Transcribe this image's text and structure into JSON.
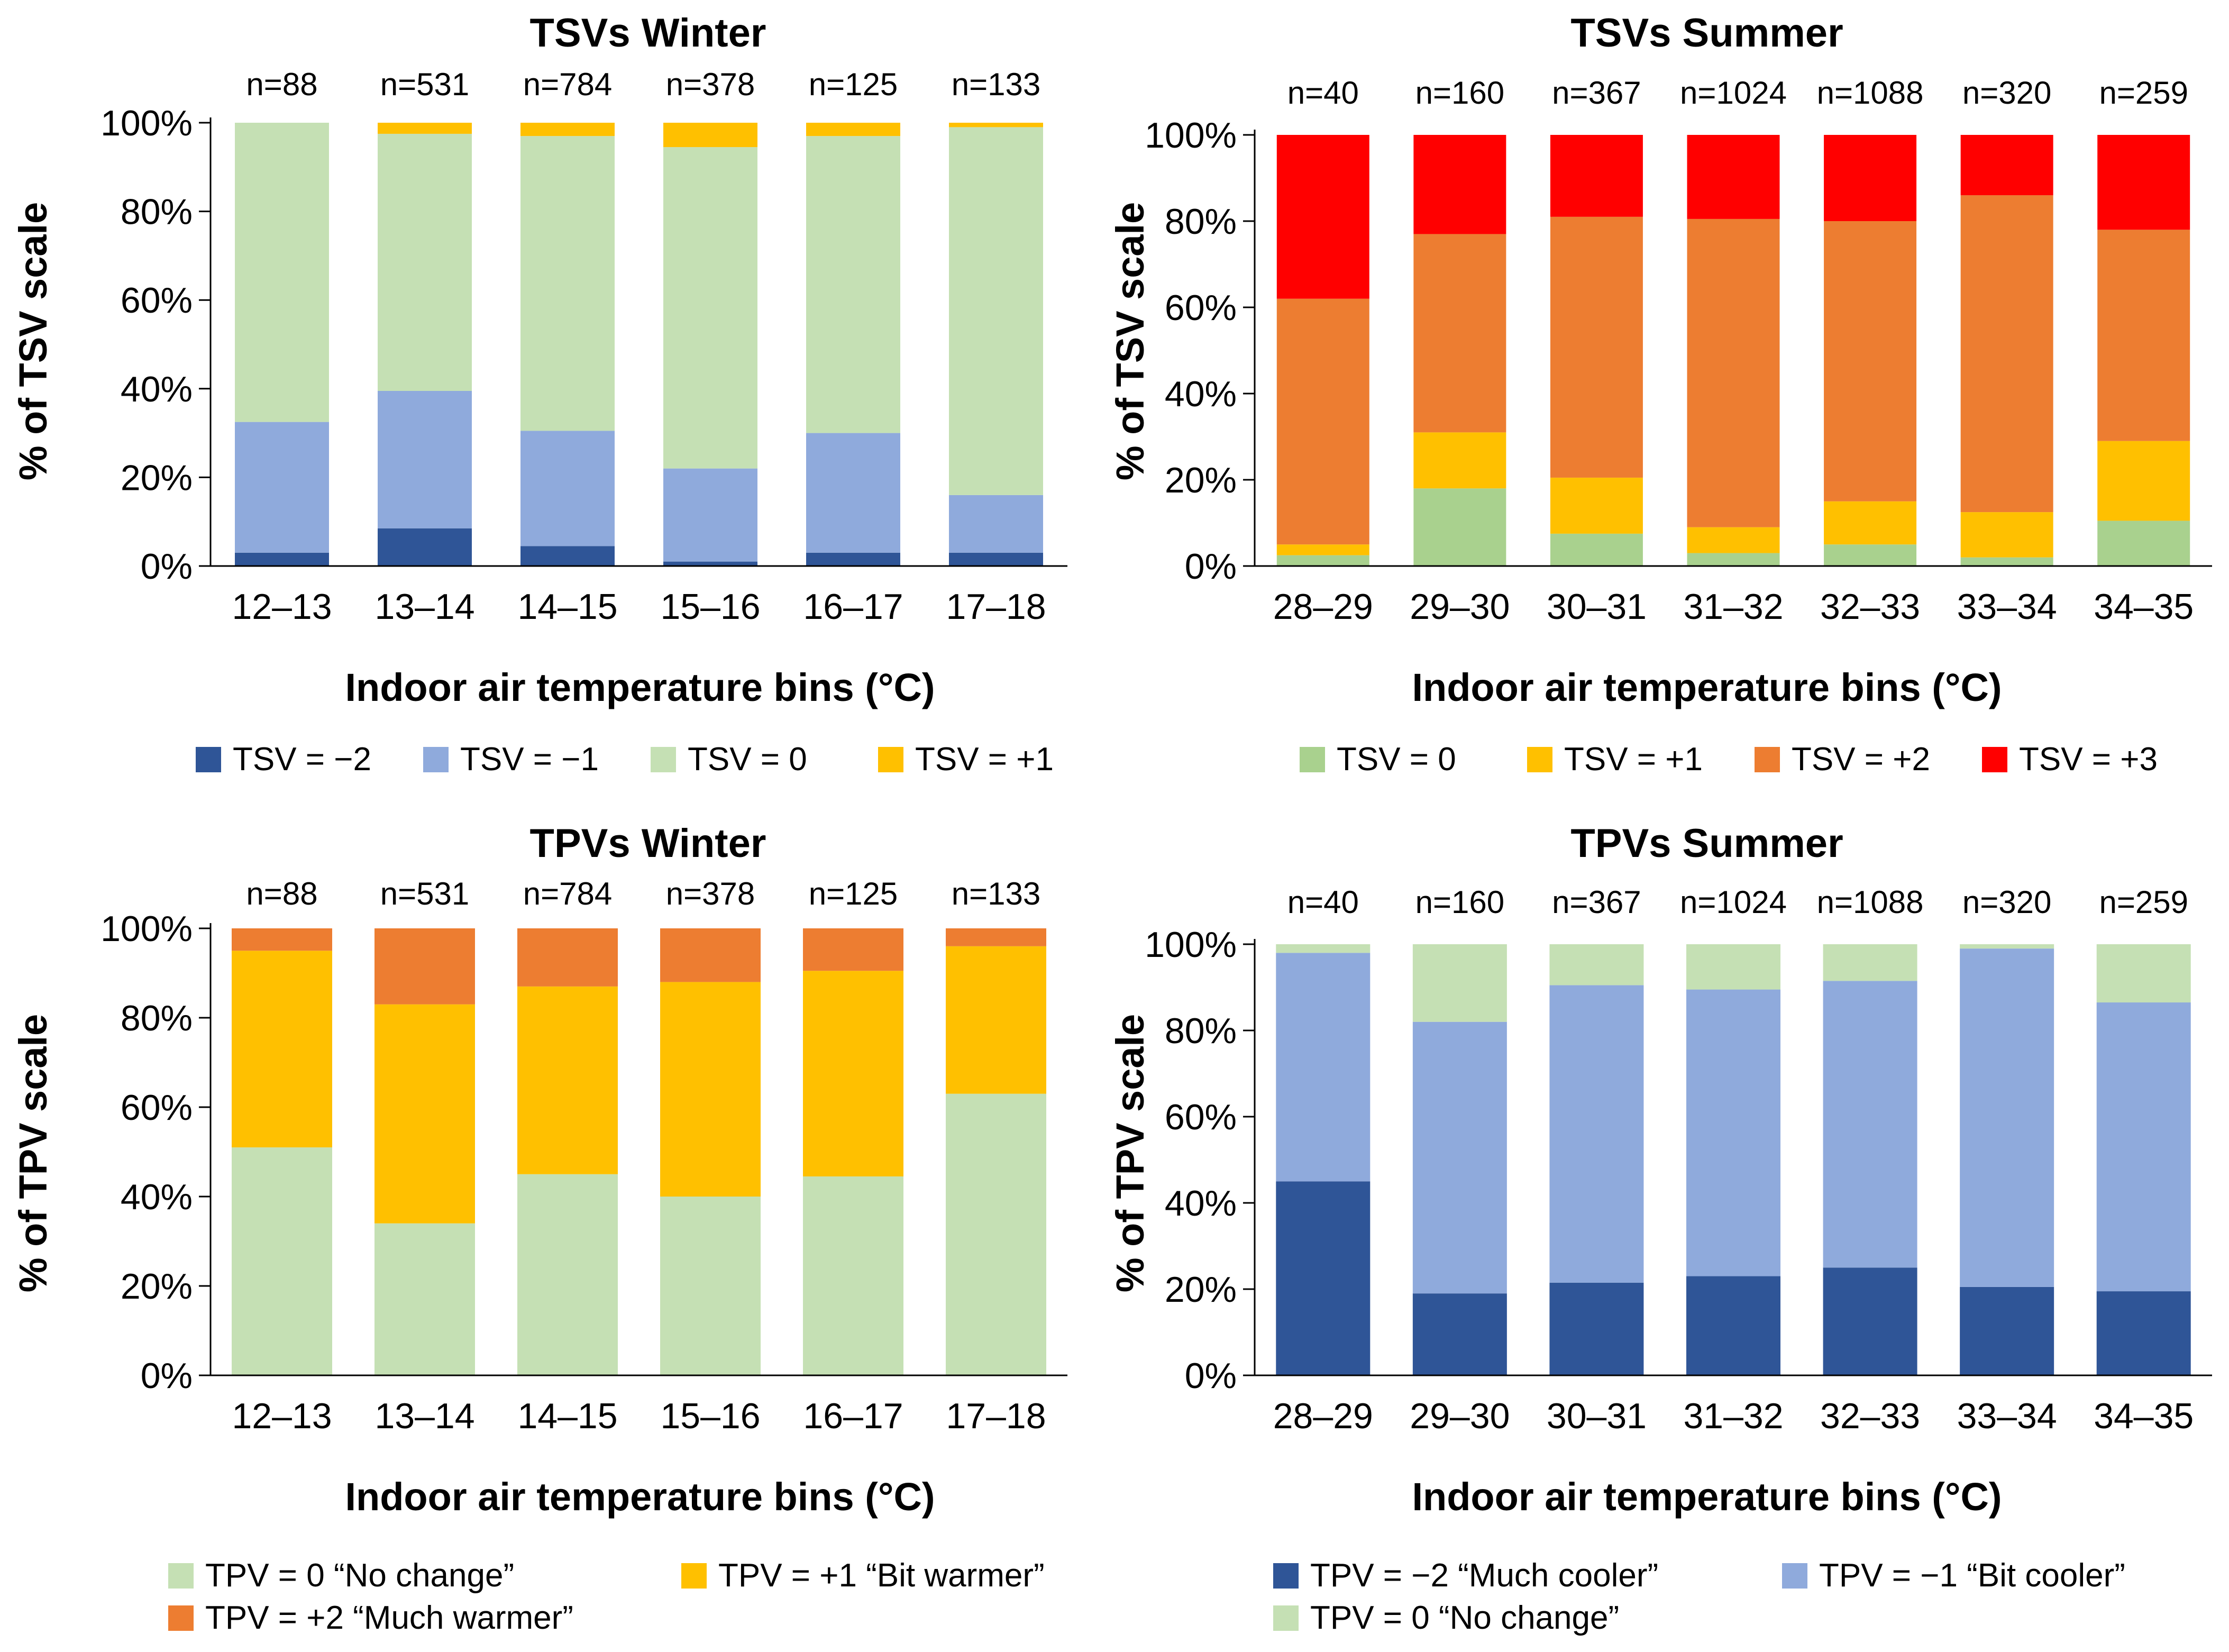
{
  "chart_data": [
    {
      "type": "bar",
      "stacked": true,
      "title": "TSVs Winter",
      "xlabel": "Indoor air temperature bins (°C)",
      "ylabel": "% of TSV scale",
      "ylim": [
        0,
        100
      ],
      "yticks": [
        "0%",
        "20%",
        "40%",
        "60%",
        "80%",
        "100%"
      ],
      "categories": [
        "12–13",
        "13–14",
        "14–15",
        "15–16",
        "16–17",
        "17–18"
      ],
      "counts": [
        "n=88",
        "n=531",
        "n=784",
        "n=378",
        "n=125",
        "n=133"
      ],
      "series": [
        {
          "name": "TSV = −2",
          "color": "#2F5597",
          "values": [
            3,
            8.5,
            4.5,
            1,
            3,
            3
          ]
        },
        {
          "name": "TSV = −1",
          "color": "#8FAADC",
          "values": [
            29.5,
            31,
            26,
            21,
            27,
            13
          ]
        },
        {
          "name": "TSV = 0",
          "color": "#C5E0B4",
          "values": [
            67.5,
            58,
            66.5,
            72.5,
            67,
            83
          ]
        },
        {
          "name": "TSV = +1",
          "color": "#FFC000",
          "values": [
            0,
            2.5,
            3,
            5.5,
            3,
            1
          ]
        }
      ],
      "legend_position": "bottom"
    },
    {
      "type": "bar",
      "stacked": true,
      "title": "TSVs Summer",
      "xlabel": "Indoor air temperature bins (°C)",
      "ylabel": "% of TSV scale",
      "ylim": [
        0,
        100
      ],
      "yticks": [
        "0%",
        "20%",
        "40%",
        "60%",
        "80%",
        "100%"
      ],
      "categories": [
        "28–29",
        "29–30",
        "30–31",
        "31–32",
        "32–33",
        "33–34",
        "34–35"
      ],
      "counts": [
        "n=40",
        "n=160",
        "n=367",
        "n=1024",
        "n=1088",
        "n=320",
        "n=259"
      ],
      "series": [
        {
          "name": "TSV = 0",
          "color": "#A9D18E",
          "values": [
            2.5,
            18,
            7.5,
            3,
            5,
            2,
            10.5
          ]
        },
        {
          "name": "TSV = +1",
          "color": "#FFC000",
          "values": [
            2.5,
            13,
            13,
            6,
            10,
            10.5,
            18.5
          ]
        },
        {
          "name": "TSV = +2",
          "color": "#ED7D31",
          "values": [
            57,
            46,
            60.5,
            71.5,
            65,
            73.5,
            49
          ]
        },
        {
          "name": "TSV = +3",
          "color": "#FF0000",
          "values": [
            38,
            23,
            19,
            19.5,
            20,
            14,
            22
          ]
        }
      ],
      "legend_position": "bottom"
    },
    {
      "type": "bar",
      "stacked": true,
      "title": "TPVs Winter",
      "xlabel": "Indoor air temperature bins (°C)",
      "ylabel": "% of TPV scale",
      "ylim": [
        0,
        100
      ],
      "yticks": [
        "0%",
        "20%",
        "40%",
        "60%",
        "80%",
        "100%"
      ],
      "categories": [
        "12–13",
        "13–14",
        "14–15",
        "15–16",
        "16–17",
        "17–18"
      ],
      "counts": [
        "n=88",
        "n=531",
        "n=784",
        "n=378",
        "n=125",
        "n=133"
      ],
      "series": [
        {
          "name": "TPV = 0 “No change”",
          "color": "#C5E0B4",
          "values": [
            51,
            34,
            45,
            40,
            44.5,
            63
          ]
        },
        {
          "name": "TPV = +1 “Bit warmer”",
          "color": "#FFC000",
          "values": [
            44,
            49,
            42,
            48,
            46,
            33
          ]
        },
        {
          "name": "TPV = +2 “Much warmer”",
          "color": "#ED7D31",
          "values": [
            5,
            17,
            13,
            12,
            9.5,
            4
          ]
        }
      ],
      "legend_position": "bottom"
    },
    {
      "type": "bar",
      "stacked": true,
      "title": "TPVs Summer",
      "xlabel": "Indoor air temperature bins (°C)",
      "ylabel": "% of TPV scale",
      "ylim": [
        0,
        100
      ],
      "yticks": [
        "0%",
        "20%",
        "40%",
        "60%",
        "80%",
        "100%"
      ],
      "categories": [
        "28–29",
        "29–30",
        "30–31",
        "31–32",
        "32–33",
        "33–34",
        "34–35"
      ],
      "counts": [
        "n=40",
        "n=160",
        "n=367",
        "n=1024",
        "n=1088",
        "n=320",
        "n=259"
      ],
      "series": [
        {
          "name": "TPV = −2 “Much cooler”",
          "color": "#2F5597",
          "values": [
            45,
            19,
            21.5,
            23,
            25,
            20.5,
            19.5
          ]
        },
        {
          "name": "TPV = −1 “Bit cooler”",
          "color": "#8FAADC",
          "values": [
            53,
            63,
            69,
            66.5,
            66.5,
            78.5,
            67
          ]
        },
        {
          "name": "TPV = 0 “No change”",
          "color": "#C5E0B4",
          "values": [
            5,
            21,
            13,
            14,
            11.5,
            4,
            17
          ]
        }
      ],
      "legend_position": "bottom"
    }
  ]
}
